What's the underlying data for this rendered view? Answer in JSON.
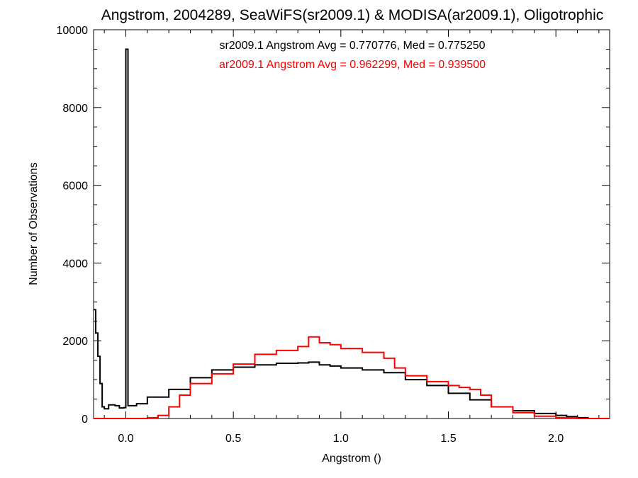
{
  "chart_data": {
    "type": "line",
    "title": "Angstrom, 2004289, SeaWiFS(sr2009.1) & MODISA(ar2009.1), Oligotrophic",
    "xlabel": "Angstrom ()",
    "ylabel": "Number of Observations",
    "xlim": [
      -0.15,
      2.25
    ],
    "ylim": [
      0,
      10000
    ],
    "x_ticks": [
      0.0,
      0.5,
      1.0,
      1.5,
      2.0
    ],
    "x_tick_labels": [
      "0.0",
      "0.5",
      "1.0",
      "1.5",
      "2.0"
    ],
    "y_ticks": [
      0,
      2000,
      4000,
      6000,
      8000,
      10000
    ],
    "y_tick_labels": [
      "0",
      "2000",
      "4000",
      "6000",
      "8000",
      "10000"
    ],
    "grid": false,
    "annotations": [
      {
        "text": "sr2009.1 Angstrom Avg = 0.770776, Med = 0.775250",
        "color": "#000000"
      },
      {
        "text": "ar2009.1 Angstrom Avg = 0.962299, Med = 0.939500",
        "color": "#ff0000"
      }
    ],
    "series": [
      {
        "color": "#000000",
        "x": [
          -0.15,
          -0.14,
          -0.13,
          -0.12,
          -0.11,
          -0.1,
          -0.08,
          -0.05,
          -0.03,
          -0.01,
          0.0,
          0.01,
          0.05,
          0.1,
          0.2,
          0.3,
          0.4,
          0.5,
          0.6,
          0.7,
          0.8,
          0.85,
          0.9,
          0.95,
          1.0,
          1.1,
          1.2,
          1.3,
          1.4,
          1.5,
          1.6,
          1.7,
          1.8,
          1.9,
          2.0,
          2.05,
          2.1,
          2.15,
          2.25
        ],
        "y": [
          2800,
          2200,
          1600,
          900,
          300,
          250,
          350,
          330,
          270,
          280,
          9500,
          330,
          380,
          550,
          750,
          1050,
          1250,
          1320,
          1380,
          1420,
          1430,
          1450,
          1380,
          1350,
          1300,
          1250,
          1180,
          1000,
          850,
          650,
          480,
          300,
          200,
          130,
          80,
          50,
          20,
          0,
          0
        ]
      },
      {
        "color": "#ff0000",
        "x": [
          -0.15,
          0.0,
          0.05,
          0.1,
          0.15,
          0.2,
          0.25,
          0.3,
          0.4,
          0.5,
          0.6,
          0.7,
          0.8,
          0.85,
          0.9,
          0.95,
          1.0,
          1.1,
          1.2,
          1.25,
          1.3,
          1.4,
          1.5,
          1.55,
          1.6,
          1.65,
          1.7,
          1.8,
          1.9,
          2.0,
          2.1,
          2.25
        ],
        "y": [
          0,
          0,
          0,
          20,
          80,
          300,
          600,
          900,
          1150,
          1400,
          1650,
          1750,
          1850,
          2100,
          1950,
          1900,
          1800,
          1700,
          1550,
          1300,
          1100,
          950,
          850,
          800,
          750,
          600,
          300,
          150,
          60,
          20,
          0,
          0
        ]
      }
    ]
  }
}
